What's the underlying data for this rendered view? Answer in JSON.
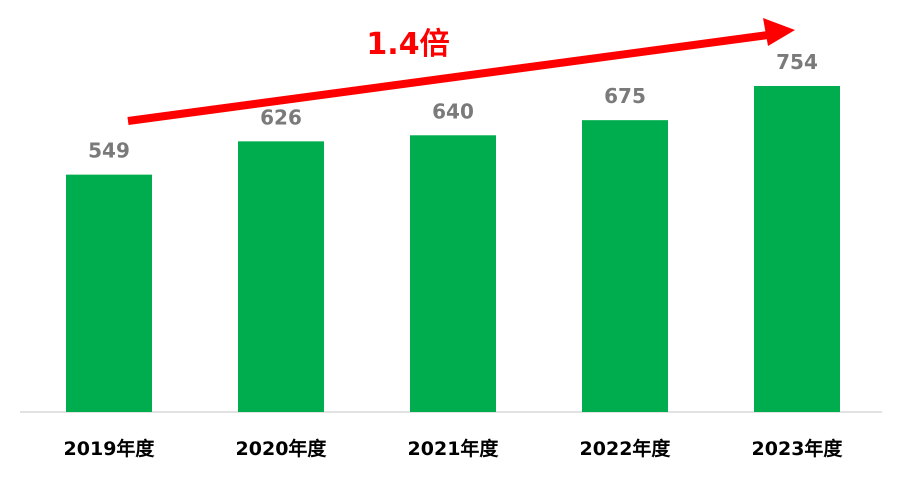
{
  "chart_data": {
    "type": "bar",
    "categories": [
      "2019年度",
      "2020年度",
      "2021年度",
      "2022年度",
      "2023年度"
    ],
    "values": [
      549,
      626,
      640,
      675,
      754
    ],
    "annotation": "1.4倍",
    "ylim": [
      0,
      754
    ],
    "grid": false,
    "legend": "none"
  },
  "colors": {
    "bar": "#00ad4e",
    "arrow": "#ff0000",
    "value_label": "#7a7a7a",
    "category_label": "#000000",
    "baseline": "#d9d9d9"
  }
}
